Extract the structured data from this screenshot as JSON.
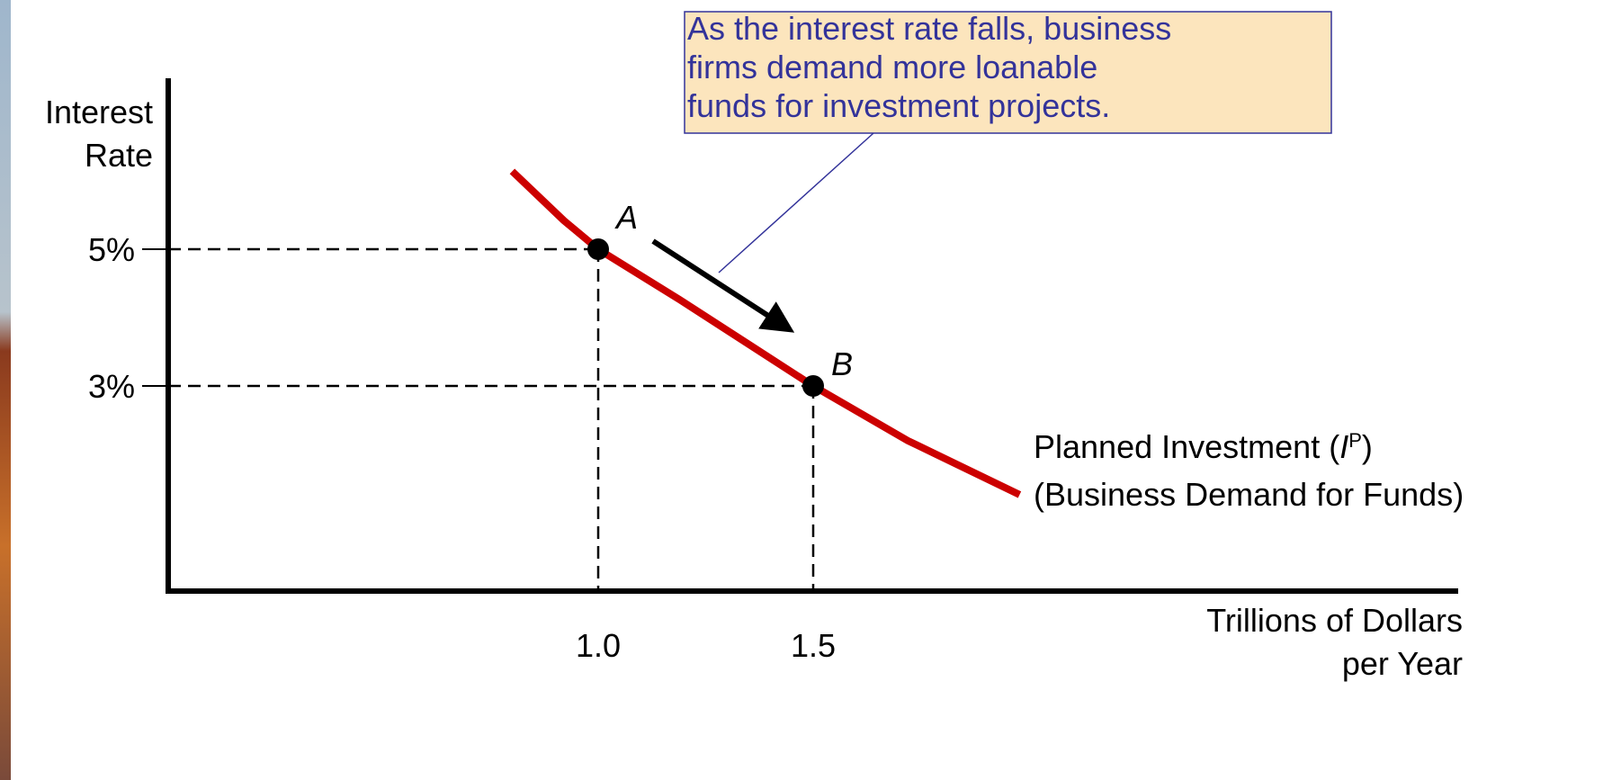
{
  "chart_data": {
    "type": "line",
    "y_label": [
      "Interest",
      "Rate"
    ],
    "x_label": [
      "Trillions of Dollars",
      "per Year"
    ],
    "xlim": [
      0,
      3
    ],
    "ylim": [
      0,
      7.5
    ],
    "xticks": [
      {
        "value": 1.0,
        "label": "1.0"
      },
      {
        "value": 1.5,
        "label": "1.5"
      }
    ],
    "yticks": [
      {
        "value": 5,
        "label": "5%"
      },
      {
        "value": 3,
        "label": "3%"
      }
    ],
    "series": [
      {
        "color": "#cc0000",
        "x": [
          0.8,
          0.92,
          1.0,
          1.19,
          1.5,
          1.72,
          1.98
        ],
        "values": [
          6.14,
          5.42,
          5.0,
          4.26,
          3.0,
          2.2,
          1.41
        ]
      }
    ],
    "points": [
      {
        "label": "A",
        "x": 1.0,
        "y": 5
      },
      {
        "label": "B",
        "x": 1.5,
        "y": 3
      }
    ],
    "curve_label": {
      "prefix": "Planned Investment (",
      "italic": "I",
      "sup": "P",
      "suffix": ")",
      "line2": "(Business Demand for Funds)"
    },
    "callout": [
      "As the interest rate falls, business",
      "firms demand more loanable",
      "funds for investment projects."
    ]
  }
}
